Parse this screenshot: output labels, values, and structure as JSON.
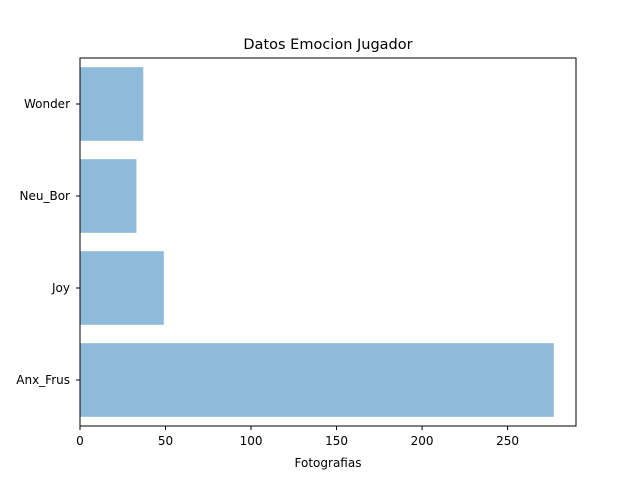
{
  "chart_data": {
    "type": "bar",
    "orientation": "horizontal",
    "title": "Datos Emocion Jugador",
    "xlabel": "Fotografias",
    "ylabel": "",
    "categories": [
      "Anx_Frus",
      "Joy",
      "Neu_Bor",
      "Wonder"
    ],
    "values": [
      277,
      49,
      33,
      37
    ],
    "xlim": [
      0,
      290
    ],
    "xticks": [
      0,
      50,
      100,
      150,
      200,
      250
    ],
    "bar_color": "#8fbbda",
    "grid": false,
    "legend": "none"
  }
}
